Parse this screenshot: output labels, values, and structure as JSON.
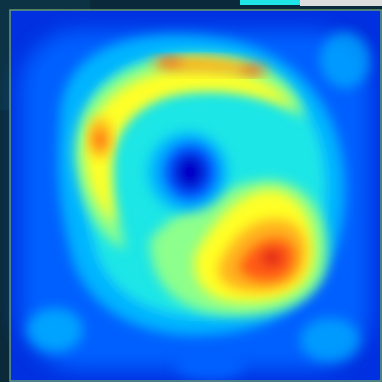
{
  "image": {
    "kind": "false-color intensity map",
    "colormap": [
      "#0000c8",
      "#0050ff",
      "#00b4ff",
      "#1ee6e6",
      "#8cff8c",
      "#ffff28",
      "#ffb41e",
      "#ff5a14",
      "#dc1414"
    ],
    "frame_color": "#6a9a6a",
    "background_corner_color": "#0a2a3a"
  }
}
